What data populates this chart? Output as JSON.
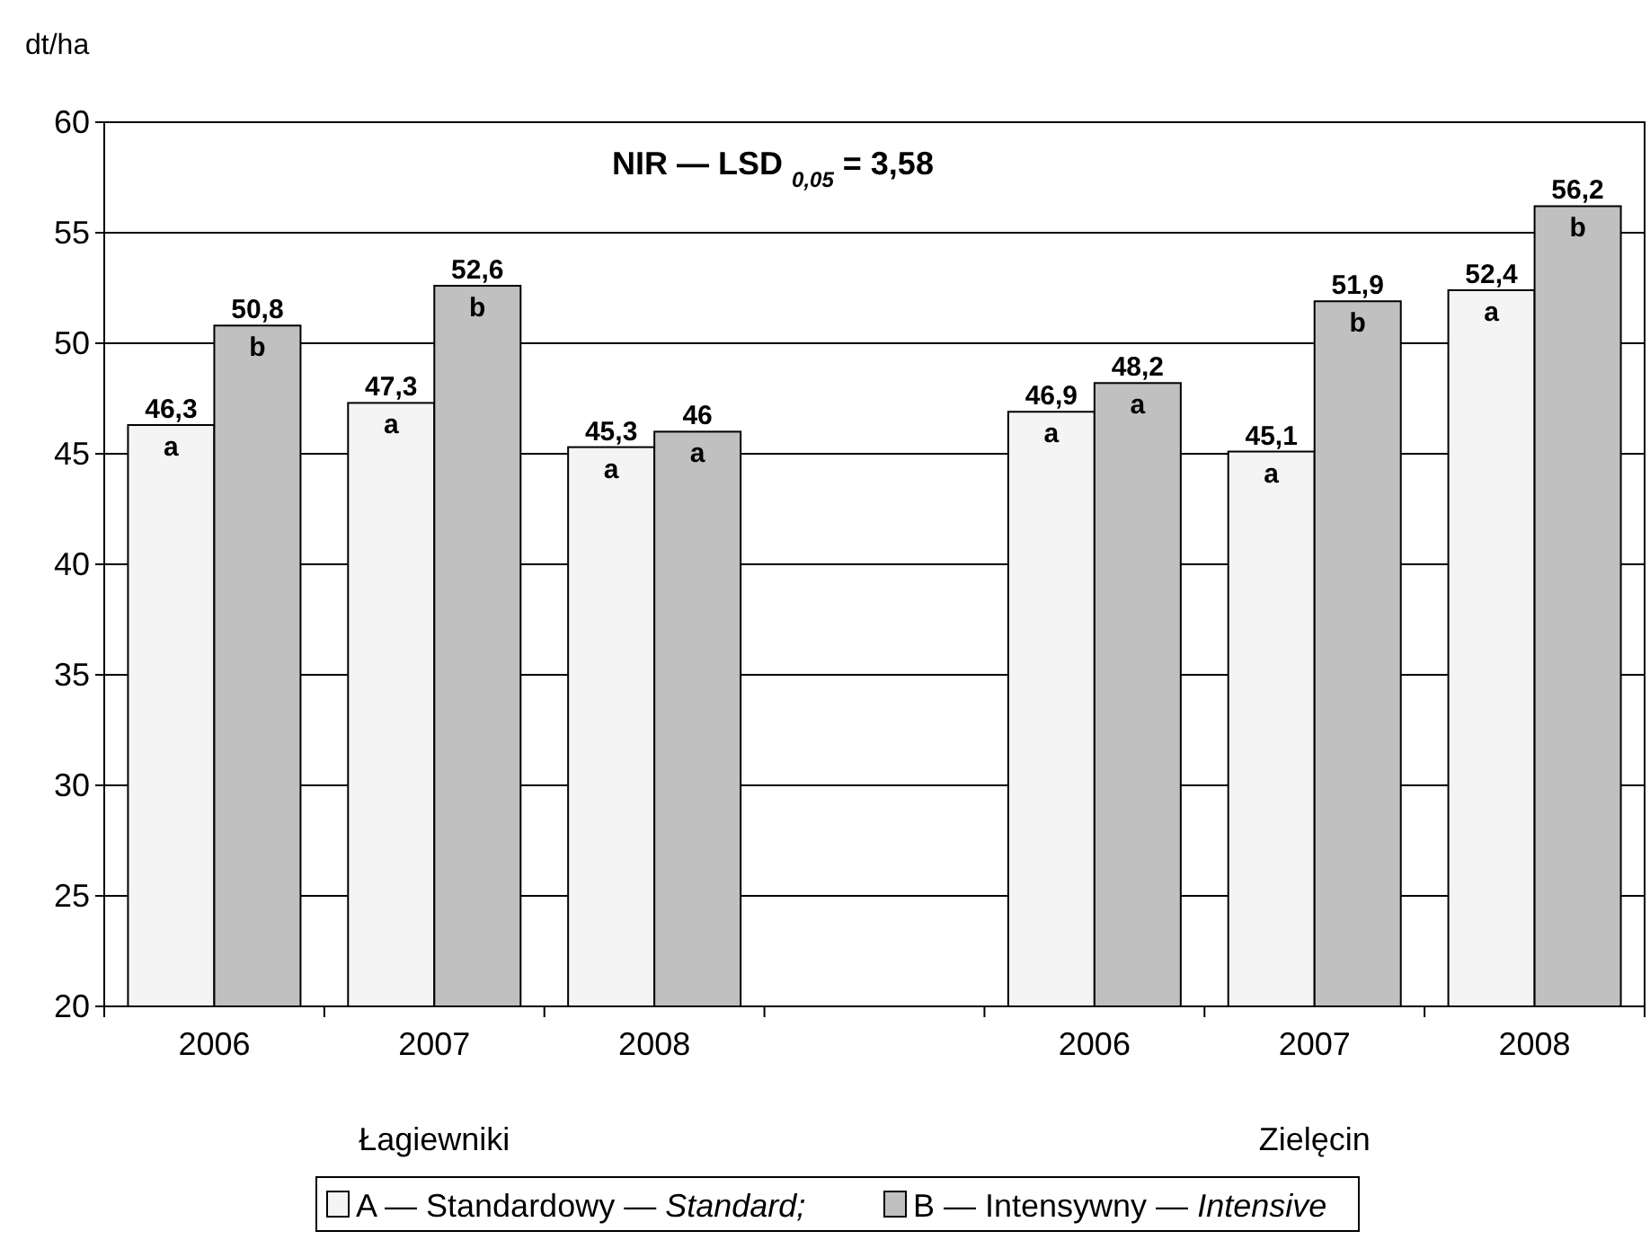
{
  "chart_data": {
    "type": "bar",
    "ylabel": "dt/ha",
    "categories": [
      "2006",
      "2007",
      "2008",
      null,
      "2006",
      "2007",
      "2008"
    ],
    "series": [
      {
        "name": "A — Standardowy — Standard;",
        "color": "#f4f4f4",
        "values": [
          46.3,
          47.3,
          45.3,
          null,
          46.9,
          45.1,
          52.4
        ],
        "value_labels": [
          "46,3",
          "47,3",
          "45,3",
          null,
          "46,9",
          "45,1",
          "52,4"
        ]
      },
      {
        "name": "B — Intensywny — Intensive",
        "color": "#c0c0c0",
        "values": [
          50.8,
          52.6,
          46,
          null,
          48.2,
          51.9,
          56.2
        ],
        "value_labels": [
          "50,8",
          "52,6",
          "46",
          null,
          "48,2",
          "51,9",
          "56,2"
        ]
      }
    ],
    "ylim": [
      20,
      60
    ],
    "yticks": [
      20,
      25,
      30,
      35,
      40,
      45,
      50,
      55,
      60
    ],
    "grid": "y",
    "legend": "bottom",
    "annotations": [
      "NIR — LSD $_{0,05}$ = 3,58",
      "Łagiewniki",
      "Zielęcin",
      "a",
      "b",
      "a",
      "b",
      "a",
      "a",
      "a",
      "a",
      "a",
      "b",
      "a",
      "b"
    ]
  }
}
